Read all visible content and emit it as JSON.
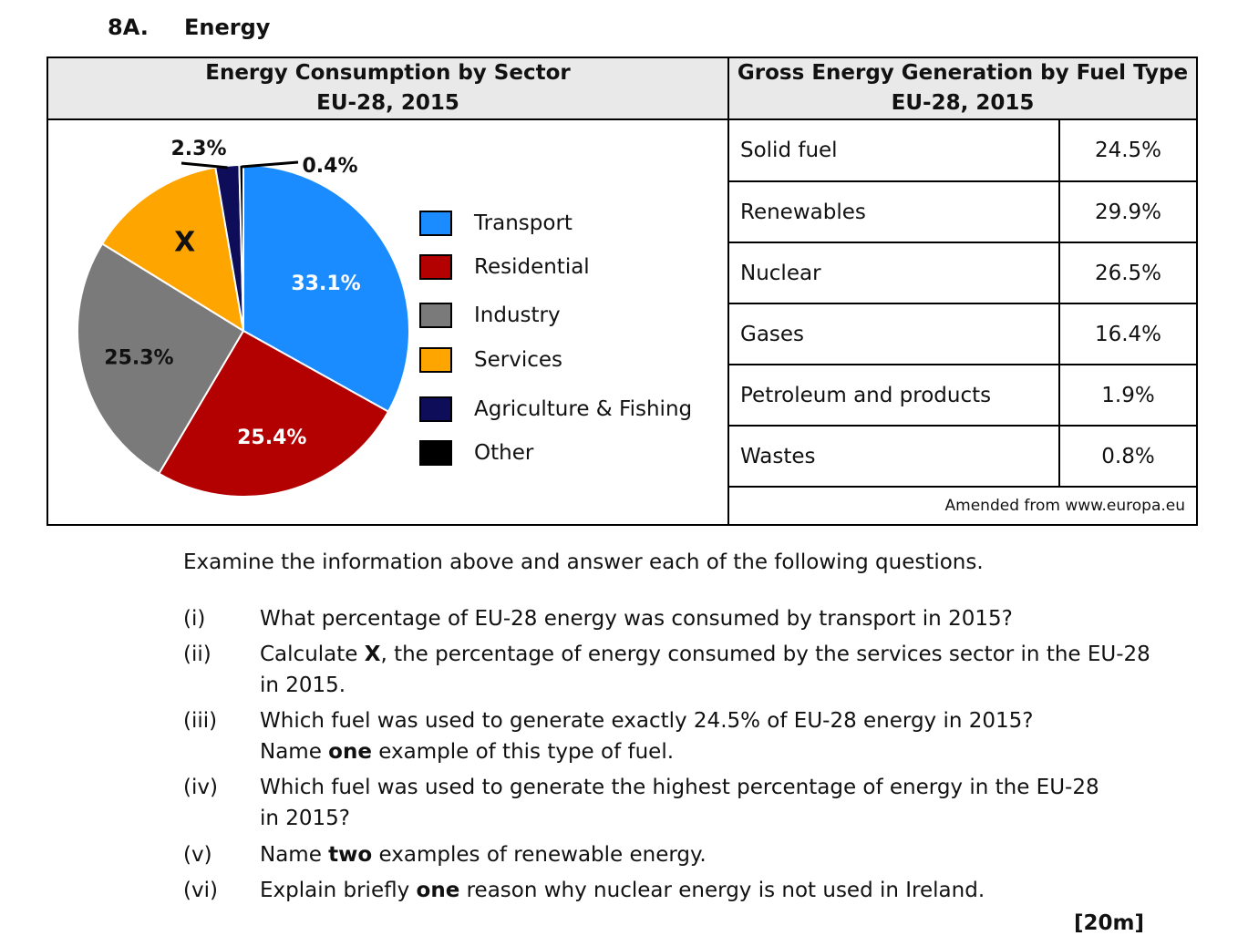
{
  "question": {
    "number": "8A.",
    "title": "Energy"
  },
  "left_header": {
    "line1": "Energy Consumption by Sector",
    "line2": "EU-28, 2015"
  },
  "right_header": {
    "line1": "Gross Energy Generation by Fuel Type",
    "line2": "EU-28, 2015"
  },
  "chart_data": {
    "type": "pie",
    "title": "Energy Consumption by Sector EU-28, 2015",
    "slices": [
      {
        "name": "Transport",
        "value": 33.1,
        "label": "33.1%",
        "color": "#1a8cff"
      },
      {
        "name": "Residential",
        "value": 25.4,
        "label": "25.4%",
        "color": "#b30000"
      },
      {
        "name": "Industry",
        "value": 25.3,
        "label": "25.3%",
        "color": "#7a7a7a"
      },
      {
        "name": "Services",
        "value": 13.5,
        "label": "X",
        "color": "#ffa500"
      },
      {
        "name": "Agriculture & Fishing",
        "value": 2.3,
        "label": "2.3%",
        "color": "#0d0d59"
      },
      {
        "name": "Other",
        "value": 0.4,
        "label": "0.4%",
        "color": "#000000"
      }
    ],
    "legend_placement": "right"
  },
  "fuel_table": [
    {
      "fuel": "Solid fuel",
      "value": "24.5%"
    },
    {
      "fuel": "Renewables",
      "value": "29.9%"
    },
    {
      "fuel": "Nuclear",
      "value": "26.5%"
    },
    {
      "fuel": "Gases",
      "value": "16.4%"
    },
    {
      "fuel": "Petroleum and products",
      "value": "1.9%"
    },
    {
      "fuel": "Wastes",
      "value": "0.8%"
    }
  ],
  "source": "Amended from www.europa.eu",
  "intro": "Examine the information above and answer each of the following questions.",
  "questions": [
    {
      "num": "(i)",
      "line1": "What percentage of EU-28 energy was consumed by transport in 2015?",
      "line2": ""
    },
    {
      "num": "(ii)",
      "line1a": "Calculate ",
      "bold": "X",
      "line1b": ", the percentage of energy consumed by the services sector in the EU-28",
      "line2": "in 2015."
    },
    {
      "num": "(iii)",
      "line1": "Which fuel was used to generate exactly 24.5% of EU-28 energy in 2015?",
      "line2a": "Name ",
      "bold": "one",
      "line2b": " example of this type of fuel."
    },
    {
      "num": "(iv)",
      "line1": "Which fuel was used to generate the highest percentage of energy in the EU-28",
      "line2": "in 2015?"
    },
    {
      "num": "(v)",
      "line1a": "Name ",
      "bold": "two",
      "line1b": " examples of renewable energy."
    },
    {
      "num": "(vi)",
      "line1a": "Explain briefly ",
      "bold": "one",
      "line1b": " reason why nuclear energy is not used in Ireland."
    }
  ],
  "marks": "[20m]"
}
